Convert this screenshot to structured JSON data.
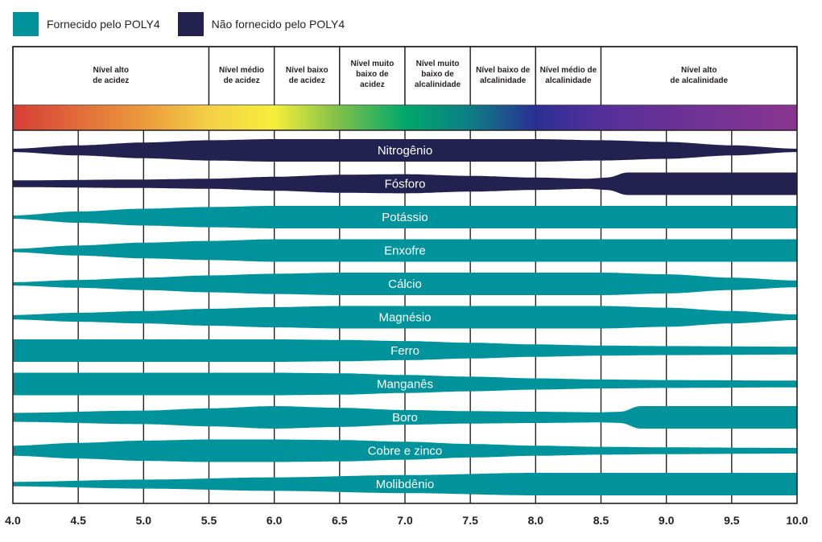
{
  "legend": {
    "supplied": {
      "label": "Fornecido pelo POLY4",
      "color": "#00939b"
    },
    "not_supplied": {
      "label": "Não fornecido pelo POLY4",
      "color": "#232150"
    }
  },
  "chart_data": {
    "type": "nutrient-availability-ph",
    "xlabel": "",
    "xlim": [
      4.0,
      10.0
    ],
    "ticks": [
      "4.0",
      "4.5",
      "5.0",
      "5.5",
      "6.0",
      "6.5",
      "7.0",
      "7.5",
      "8.0",
      "8.5",
      "9.0",
      "9.5",
      "10.0"
    ],
    "grid": true,
    "zones": [
      {
        "lines": [
          "Nível alto",
          "de acidez"
        ],
        "from": 4.0,
        "to": 5.5
      },
      {
        "lines": [
          "Nível médio",
          "de acidez"
        ],
        "from": 5.5,
        "to": 6.0
      },
      {
        "lines": [
          "Nível baixo",
          "de acidez"
        ],
        "from": 6.0,
        "to": 6.5
      },
      {
        "lines": [
          "Nível muito",
          "baixo de",
          "acidez"
        ],
        "from": 6.5,
        "to": 7.0
      },
      {
        "lines": [
          "Nível muito",
          "baixo de",
          "alcalinidade"
        ],
        "from": 7.0,
        "to": 7.5
      },
      {
        "lines": [
          "Nível baixo de",
          "alcalinidade"
        ],
        "from": 7.5,
        "to": 8.0
      },
      {
        "lines": [
          "Nível médio de",
          "alcalinidade"
        ],
        "from": 8.0,
        "to": 8.5
      },
      {
        "lines": [
          "Nível alto",
          "de alcalinidade"
        ],
        "from": 8.5,
        "to": 10.0
      }
    ],
    "ph_colors": [
      {
        "ph": 4.0,
        "color": "#d63d36"
      },
      {
        "ph": 5.0,
        "color": "#ec9a3c"
      },
      {
        "ph": 5.5,
        "color": "#f3d046"
      },
      {
        "ph": 6.0,
        "color": "#f6ee3a"
      },
      {
        "ph": 6.5,
        "color": "#7cc04a"
      },
      {
        "ph": 7.0,
        "color": "#00a86b"
      },
      {
        "ph": 7.5,
        "color": "#0e7d86"
      },
      {
        "ph": 8.0,
        "color": "#2a2f93"
      },
      {
        "ph": 8.5,
        "color": "#552f9a"
      },
      {
        "ph": 10.0,
        "color": "#8a3590"
      }
    ],
    "nutrients": [
      {
        "name": "Nitrogênio",
        "supplied": false,
        "profile": [
          [
            4.0,
            0.15
          ],
          [
            4.5,
            0.45
          ],
          [
            5.0,
            0.7
          ],
          [
            5.5,
            0.9
          ],
          [
            6.0,
            1
          ],
          [
            8.0,
            1
          ],
          [
            8.5,
            0.9
          ],
          [
            9.0,
            0.75
          ],
          [
            9.5,
            0.45
          ],
          [
            10.0,
            0.15
          ]
        ]
      },
      {
        "name": "Fósforo",
        "supplied": false,
        "profile": [
          [
            4.0,
            0.3
          ],
          [
            5.0,
            0.38
          ],
          [
            5.5,
            0.45
          ],
          [
            6.0,
            0.62
          ],
          [
            6.5,
            0.8
          ],
          [
            7.0,
            0.85
          ],
          [
            7.5,
            0.7
          ],
          [
            8.0,
            0.55
          ],
          [
            8.4,
            0.45
          ],
          [
            8.55,
            0.55
          ],
          [
            8.7,
            1
          ],
          [
            10.0,
            1
          ]
        ]
      },
      {
        "name": "Potássio",
        "supplied": true,
        "profile": [
          [
            4.0,
            0.15
          ],
          [
            4.5,
            0.5
          ],
          [
            5.0,
            0.75
          ],
          [
            5.5,
            0.9
          ],
          [
            6.0,
            1
          ],
          [
            10.0,
            1
          ]
        ]
      },
      {
        "name": "Enxofre",
        "supplied": true,
        "profile": [
          [
            4.0,
            0.15
          ],
          [
            4.5,
            0.45
          ],
          [
            5.0,
            0.7
          ],
          [
            5.5,
            0.85
          ],
          [
            6.0,
            1
          ],
          [
            10.0,
            1
          ]
        ]
      },
      {
        "name": "Cálcio",
        "supplied": true,
        "profile": [
          [
            4.0,
            0.15
          ],
          [
            4.5,
            0.35
          ],
          [
            5.0,
            0.55
          ],
          [
            5.5,
            0.75
          ],
          [
            6.0,
            0.9
          ],
          [
            6.5,
            1
          ],
          [
            8.5,
            1
          ],
          [
            9.0,
            0.85
          ],
          [
            9.5,
            0.55
          ],
          [
            10.0,
            0.3
          ]
        ]
      },
      {
        "name": "Magnésio",
        "supplied": true,
        "profile": [
          [
            4.0,
            0.2
          ],
          [
            4.5,
            0.4
          ],
          [
            5.0,
            0.55
          ],
          [
            5.5,
            0.75
          ],
          [
            6.0,
            0.9
          ],
          [
            6.5,
            1
          ],
          [
            8.5,
            1
          ],
          [
            9.0,
            0.85
          ],
          [
            9.5,
            0.55
          ],
          [
            10.0,
            0.25
          ]
        ]
      },
      {
        "name": "Ferro",
        "supplied": true,
        "profile": [
          [
            4.0,
            1
          ],
          [
            6.0,
            1
          ],
          [
            6.5,
            0.95
          ],
          [
            7.0,
            0.85
          ],
          [
            7.5,
            0.7
          ],
          [
            8.0,
            0.55
          ],
          [
            8.5,
            0.45
          ],
          [
            9.0,
            0.4
          ],
          [
            10.0,
            0.35
          ]
        ]
      },
      {
        "name": "Manganês",
        "supplied": true,
        "profile": [
          [
            4.0,
            1
          ],
          [
            6.0,
            1
          ],
          [
            6.5,
            0.95
          ],
          [
            7.0,
            0.8
          ],
          [
            7.5,
            0.65
          ],
          [
            8.0,
            0.5
          ],
          [
            8.5,
            0.4
          ],
          [
            9.0,
            0.35
          ],
          [
            10.0,
            0.3
          ]
        ]
      },
      {
        "name": "Boro",
        "supplied": true,
        "profile": [
          [
            4.0,
            0.4
          ],
          [
            5.0,
            0.6
          ],
          [
            5.5,
            0.8
          ],
          [
            6.0,
            1
          ],
          [
            6.5,
            0.85
          ],
          [
            7.0,
            0.65
          ],
          [
            7.5,
            0.55
          ],
          [
            8.0,
            0.5
          ],
          [
            8.5,
            0.45
          ],
          [
            8.65,
            0.5
          ],
          [
            8.8,
            1
          ],
          [
            10.0,
            1
          ]
        ]
      },
      {
        "name": "Cobre e zinco",
        "supplied": true,
        "profile": [
          [
            4.0,
            0.45
          ],
          [
            4.5,
            0.7
          ],
          [
            5.0,
            0.9
          ],
          [
            5.5,
            1
          ],
          [
            6.0,
            1
          ],
          [
            6.5,
            0.95
          ],
          [
            7.0,
            0.8
          ],
          [
            7.5,
            0.6
          ],
          [
            8.0,
            0.45
          ],
          [
            8.5,
            0.35
          ],
          [
            9.0,
            0.3
          ],
          [
            10.0,
            0.25
          ]
        ]
      },
      {
        "name": "Molibdênio",
        "supplied": true,
        "profile": [
          [
            4.0,
            0.2
          ],
          [
            5.0,
            0.4
          ],
          [
            6.0,
            0.6
          ],
          [
            7.0,
            0.8
          ],
          [
            8.0,
            1
          ],
          [
            10.0,
            1
          ]
        ]
      }
    ]
  }
}
